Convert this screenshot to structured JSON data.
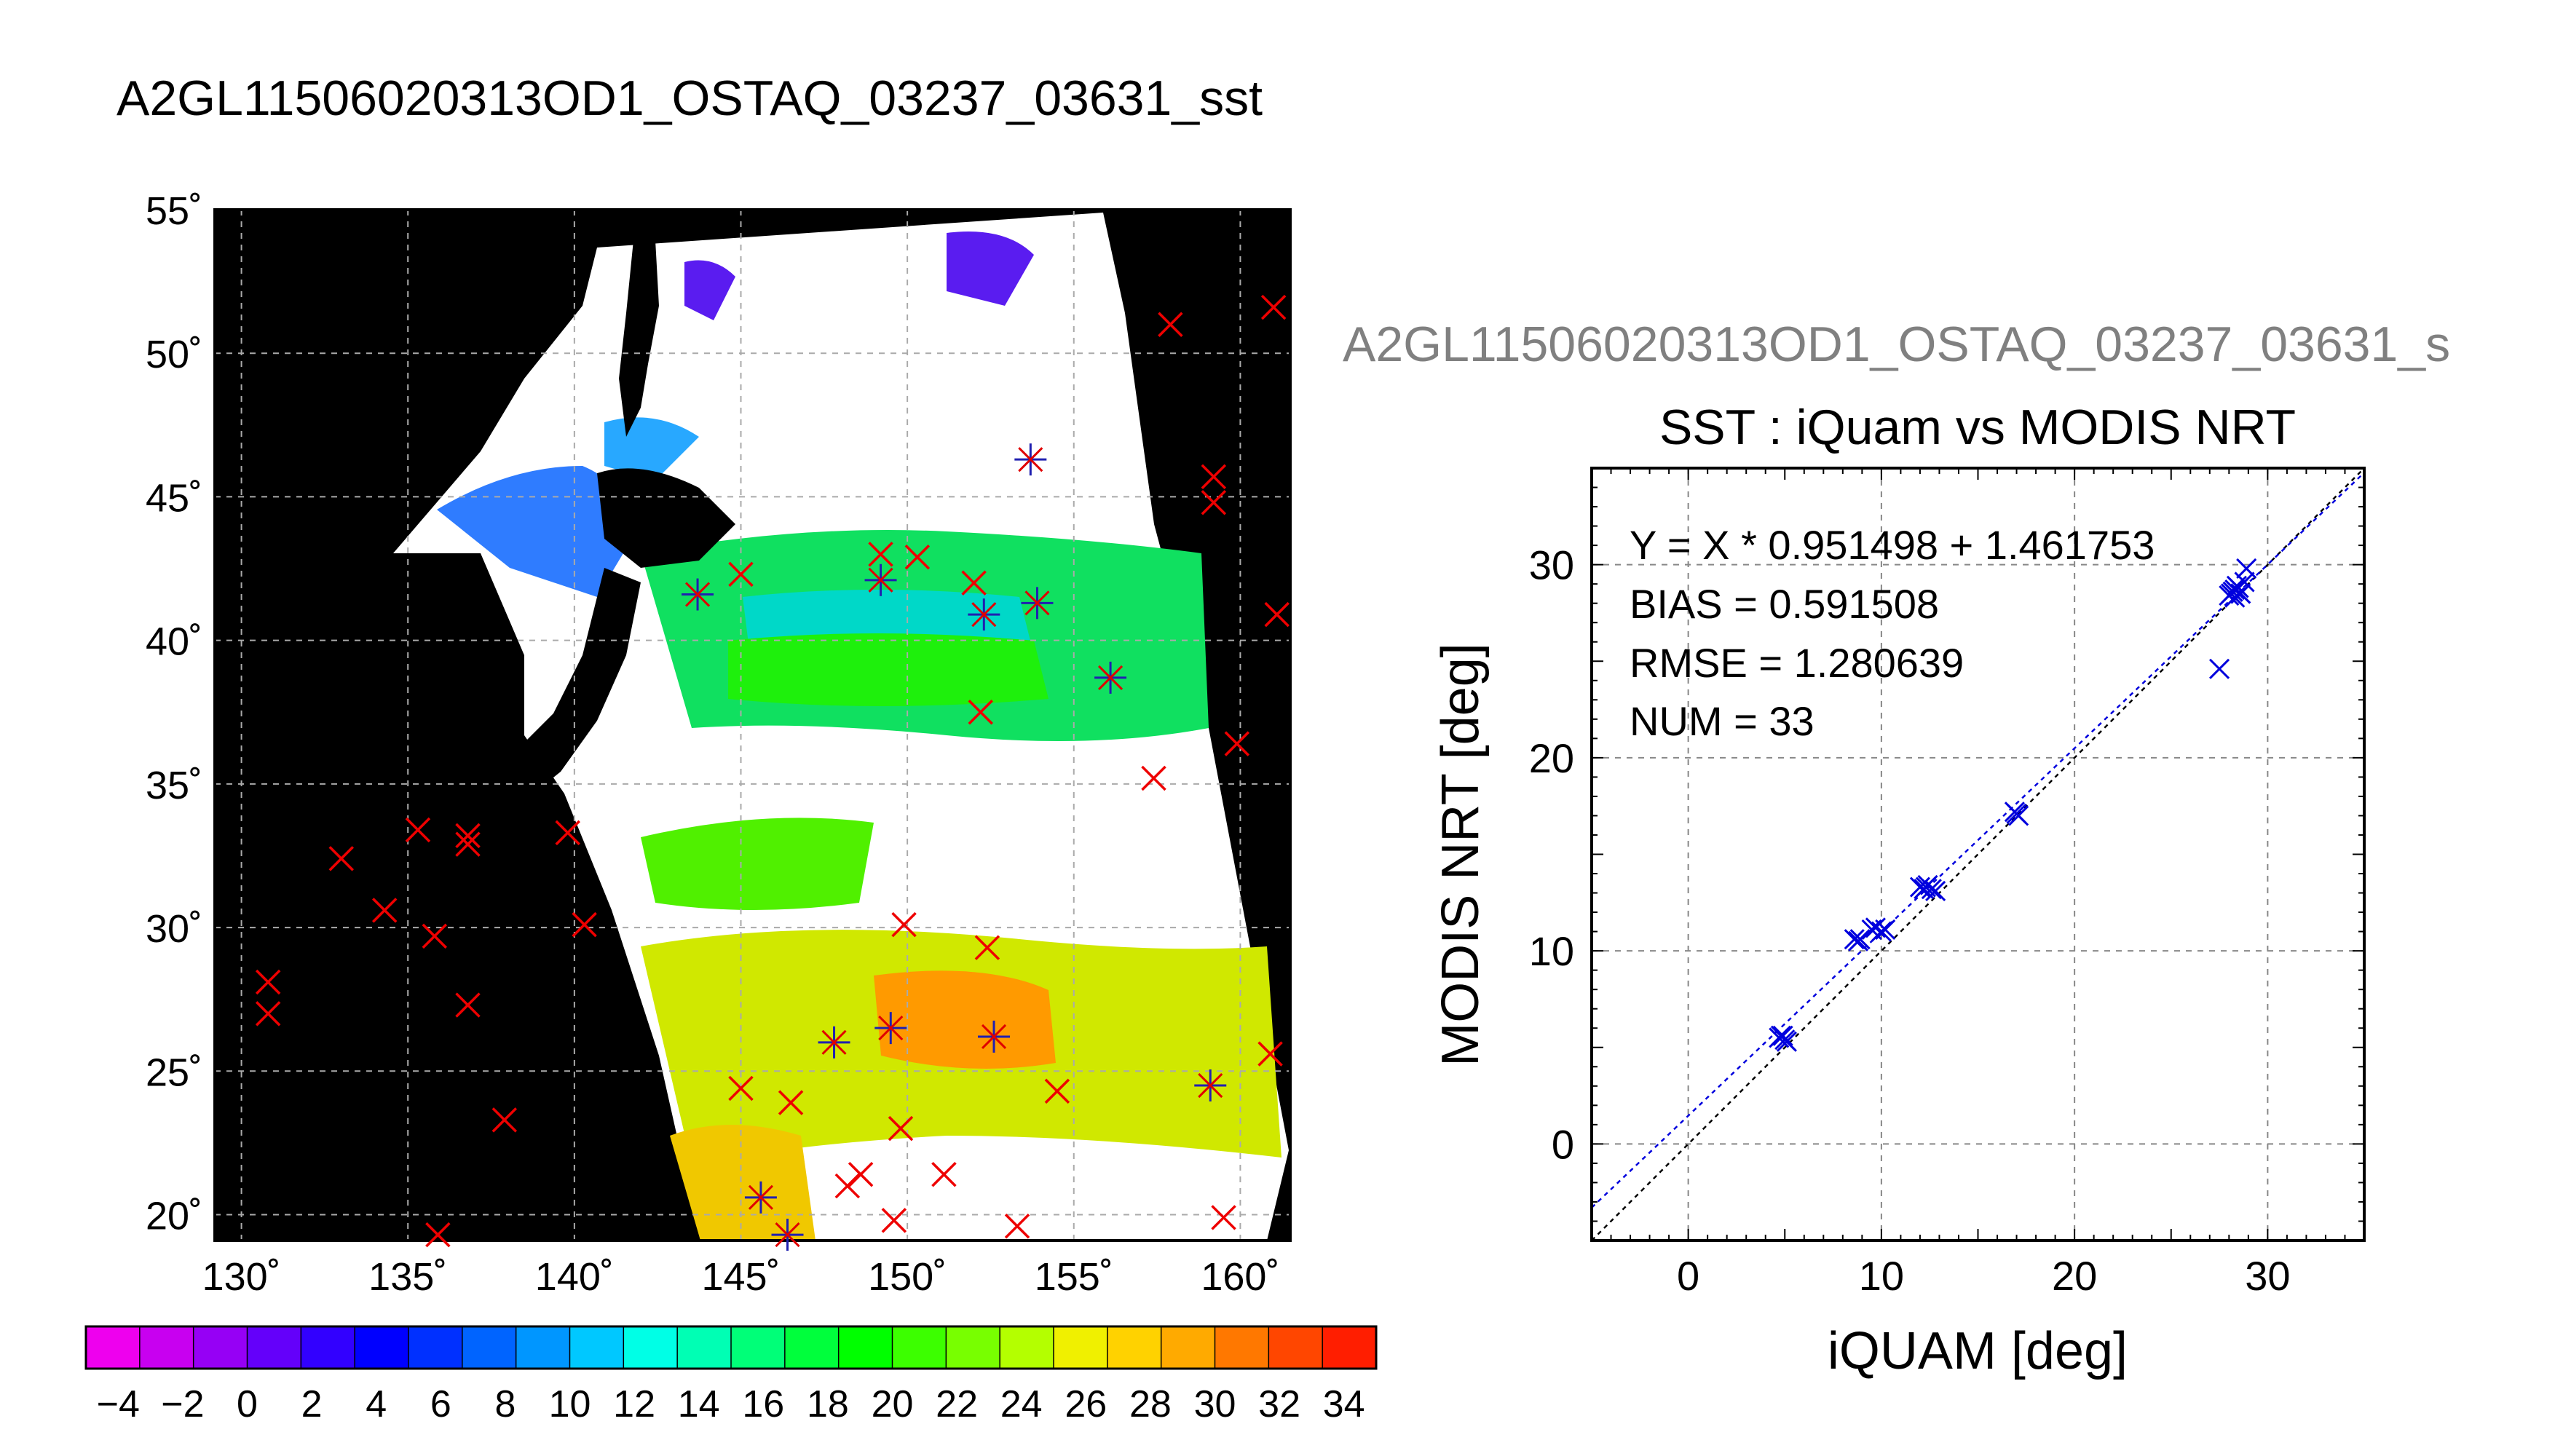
{
  "figure_title": "A2GL11506020313OD1_OSTAQ_03237_03631_sst",
  "chart_data": [
    {
      "type": "heatmap",
      "title": "A2GL11506020313OD1_OSTAQ_03237_03631_sst",
      "xlabel": "",
      "ylabel": "",
      "x_ticks": [
        "130˚",
        "135˚",
        "140˚",
        "145˚",
        "150˚",
        "155˚",
        "160˚"
      ],
      "x_tick_values": [
        130,
        135,
        140,
        145,
        150,
        155,
        160
      ],
      "y_ticks": [
        "55˚",
        "50˚",
        "45˚",
        "40˚",
        "35˚",
        "30˚",
        "25˚",
        "20˚"
      ],
      "y_tick_values": [
        55,
        50,
        45,
        40,
        35,
        30,
        25,
        20
      ],
      "xlim": [
        129.2,
        161.5
      ],
      "ylim": [
        19.1,
        55
      ],
      "grid": true,
      "background": "#000000",
      "cloud_color": "#ffffff",
      "colorbar": {
        "range": [
          -5,
          35
        ],
        "tick_labels": [
          "−4",
          "−2",
          "0",
          "2",
          "4",
          "6",
          "8",
          "10",
          "12",
          "14",
          "16",
          "18",
          "20",
          "22",
          "24",
          "26",
          "28",
          "30",
          "32",
          "34"
        ],
        "tick_values": [
          -4,
          -2,
          0,
          2,
          4,
          6,
          8,
          10,
          12,
          14,
          16,
          18,
          20,
          22,
          24,
          26,
          28,
          30,
          32,
          34
        ],
        "colors": [
          "#ee00ee",
          "#c800f0",
          "#9600f5",
          "#6400fa",
          "#3200ff",
          "#0000ff",
          "#0030ff",
          "#0064ff",
          "#0096ff",
          "#00c8ff",
          "#00ffe6",
          "#00ffb4",
          "#00ff78",
          "#00ff3c",
          "#00ff00",
          "#3cff00",
          "#78ff00",
          "#b4ff00",
          "#f0f000",
          "#ffd200",
          "#ffaa00",
          "#ff7800",
          "#ff4600",
          "#ff1e00"
        ]
      },
      "buoys": [
        {
          "lon": 143.7,
          "lat": 41.6,
          "matched": true
        },
        {
          "lon": 145.0,
          "lat": 42.3,
          "matched": false
        },
        {
          "lon": 149.2,
          "lat": 42.1,
          "matched": true
        },
        {
          "lon": 149.2,
          "lat": 43.0,
          "matched": false
        },
        {
          "lon": 150.3,
          "lat": 42.9,
          "matched": false
        },
        {
          "lon": 152.0,
          "lat": 42.0,
          "matched": false
        },
        {
          "lon": 152.3,
          "lat": 40.9,
          "matched": true
        },
        {
          "lon": 153.9,
          "lat": 41.3,
          "matched": true
        },
        {
          "lon": 153.7,
          "lat": 46.3,
          "matched": true
        },
        {
          "lon": 157.9,
          "lat": 51.0,
          "matched": false
        },
        {
          "lon": 161.0,
          "lat": 51.6,
          "matched": false
        },
        {
          "lon": 159.2,
          "lat": 45.7,
          "matched": false
        },
        {
          "lon": 159.2,
          "lat": 44.8,
          "matched": false
        },
        {
          "lon": 161.1,
          "lat": 40.9,
          "matched": false
        },
        {
          "lon": 156.1,
          "lat": 38.7,
          "matched": true
        },
        {
          "lon": 152.2,
          "lat": 37.5,
          "matched": false
        },
        {
          "lon": 159.9,
          "lat": 36.4,
          "matched": false
        },
        {
          "lon": 157.4,
          "lat": 35.2,
          "matched": false
        },
        {
          "lon": 130.8,
          "lat": 28.1,
          "matched": false
        },
        {
          "lon": 130.8,
          "lat": 27.0,
          "matched": false
        },
        {
          "lon": 133.0,
          "lat": 32.4,
          "matched": false
        },
        {
          "lon": 134.3,
          "lat": 30.6,
          "matched": false
        },
        {
          "lon": 135.3,
          "lat": 33.4,
          "matched": false
        },
        {
          "lon": 135.8,
          "lat": 29.7,
          "matched": false
        },
        {
          "lon": 136.8,
          "lat": 33.2,
          "matched": false
        },
        {
          "lon": 136.8,
          "lat": 32.9,
          "matched": false
        },
        {
          "lon": 136.8,
          "lat": 27.3,
          "matched": false
        },
        {
          "lon": 139.8,
          "lat": 33.3,
          "matched": false
        },
        {
          "lon": 140.3,
          "lat": 30.1,
          "matched": false
        },
        {
          "lon": 137.9,
          "lat": 23.3,
          "matched": false
        },
        {
          "lon": 135.9,
          "lat": 19.3,
          "matched": false
        },
        {
          "lon": 149.9,
          "lat": 30.1,
          "matched": false
        },
        {
          "lon": 152.4,
          "lat": 29.3,
          "matched": false
        },
        {
          "lon": 147.8,
          "lat": 26.0,
          "matched": true
        },
        {
          "lon": 149.5,
          "lat": 26.5,
          "matched": true
        },
        {
          "lon": 152.6,
          "lat": 26.2,
          "matched": true
        },
        {
          "lon": 159.1,
          "lat": 24.5,
          "matched": true
        },
        {
          "lon": 160.9,
          "lat": 25.6,
          "matched": false
        },
        {
          "lon": 145.0,
          "lat": 24.4,
          "matched": false
        },
        {
          "lon": 146.5,
          "lat": 23.9,
          "matched": false
        },
        {
          "lon": 154.5,
          "lat": 24.3,
          "matched": false
        },
        {
          "lon": 149.8,
          "lat": 23.0,
          "matched": false
        },
        {
          "lon": 148.6,
          "lat": 21.4,
          "matched": false
        },
        {
          "lon": 148.2,
          "lat": 21.0,
          "matched": false
        },
        {
          "lon": 151.1,
          "lat": 21.4,
          "matched": false
        },
        {
          "lon": 145.6,
          "lat": 20.6,
          "matched": true
        },
        {
          "lon": 146.4,
          "lat": 19.3,
          "matched": true
        },
        {
          "lon": 149.6,
          "lat": 19.8,
          "matched": false
        },
        {
          "lon": 153.3,
          "lat": 19.6,
          "matched": false
        },
        {
          "lon": 159.5,
          "lat": 19.9,
          "matched": false
        }
      ]
    },
    {
      "type": "scatter",
      "title": "SST : iQuam vs MODIS NRT",
      "subtitle": "A2GL11506020313OD1_OSTAQ_03237_03631_s",
      "xlabel": "iQUAM [deg]",
      "ylabel": "MODIS NRT [deg]",
      "xlim": [
        -5,
        35
      ],
      "ylim": [
        -5,
        35
      ],
      "x_ticks": [
        "0",
        "10",
        "20",
        "30"
      ],
      "x_tick_values": [
        0,
        10,
        20,
        30
      ],
      "y_ticks": [
        "0",
        "10",
        "20",
        "30"
      ],
      "y_tick_values": [
        0,
        10,
        20,
        30
      ],
      "grid": true,
      "stats": [
        "Y = X * 0.951498 + 1.461753",
        "BIAS = 0.591508",
        "RMSE = 1.280639",
        "NUM = 33"
      ],
      "fit": {
        "slope": 0.951498,
        "intercept": 1.461753
      },
      "series": [
        {
          "marker": "x",
          "color": "#0000dd",
          "x": [
            4.7,
            4.9,
            5.0,
            5.1,
            8.6,
            8.8,
            9.5,
            9.7,
            10.0,
            10.2,
            12.0,
            12.2,
            12.4,
            12.6,
            12.8,
            16.9,
            17.1,
            28.0,
            28.2,
            28.3,
            28.5,
            28.6,
            28.8,
            28.4,
            28.1,
            27.5,
            28.9,
            28.3,
            12.3,
            4.8,
            17.0,
            8.9,
            28.6
          ],
          "y": [
            5.5,
            5.6,
            5.4,
            5.3,
            10.6,
            10.5,
            11.1,
            11.2,
            11.0,
            11.1,
            13.3,
            13.2,
            13.4,
            13.2,
            13.1,
            17.2,
            17.0,
            28.4,
            28.6,
            28.3,
            28.8,
            28.5,
            29.1,
            28.9,
            28.5,
            24.6,
            29.8,
            28.7,
            13.3,
            5.6,
            17.1,
            10.6,
            28.5
          ]
        }
      ]
    }
  ]
}
